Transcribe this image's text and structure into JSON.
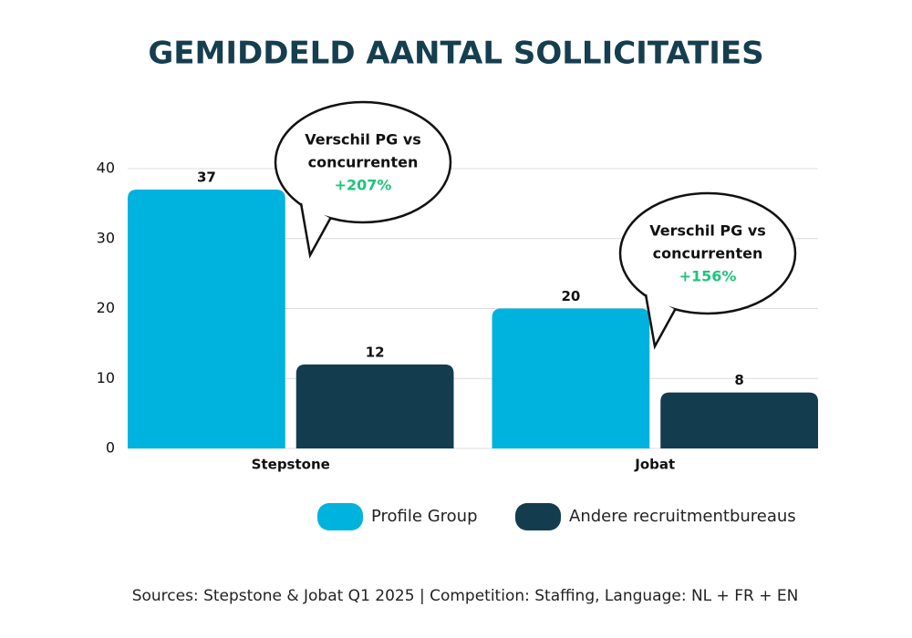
{
  "chart_data": {
    "type": "bar",
    "title": "GEMIDDELD AANTAL SOLLICITATIES",
    "categories": [
      "Stepstone",
      "Jobat"
    ],
    "series": [
      {
        "name": "Profile Group",
        "color": "#00b2de",
        "values": [
          37,
          20
        ]
      },
      {
        "name": "Andere recruitmentbureaus",
        "color": "#133c4f",
        "values": [
          12,
          8
        ]
      }
    ],
    "ylim": [
      0,
      40
    ],
    "yticks": [
      0,
      10,
      20,
      30,
      40
    ],
    "grid": true,
    "legend": "bottom",
    "annotations": [
      {
        "lines": [
          "Verschil PG vs",
          "concurrenten"
        ],
        "highlight": "+207%"
      },
      {
        "lines": [
          "Verschil PG vs",
          "concurrenten"
        ],
        "highlight": "+156%"
      }
    ],
    "source": "Sources: Stepstone & Jobat Q1 2025 | Competition: Staffing, Language: NL + FR + EN"
  }
}
